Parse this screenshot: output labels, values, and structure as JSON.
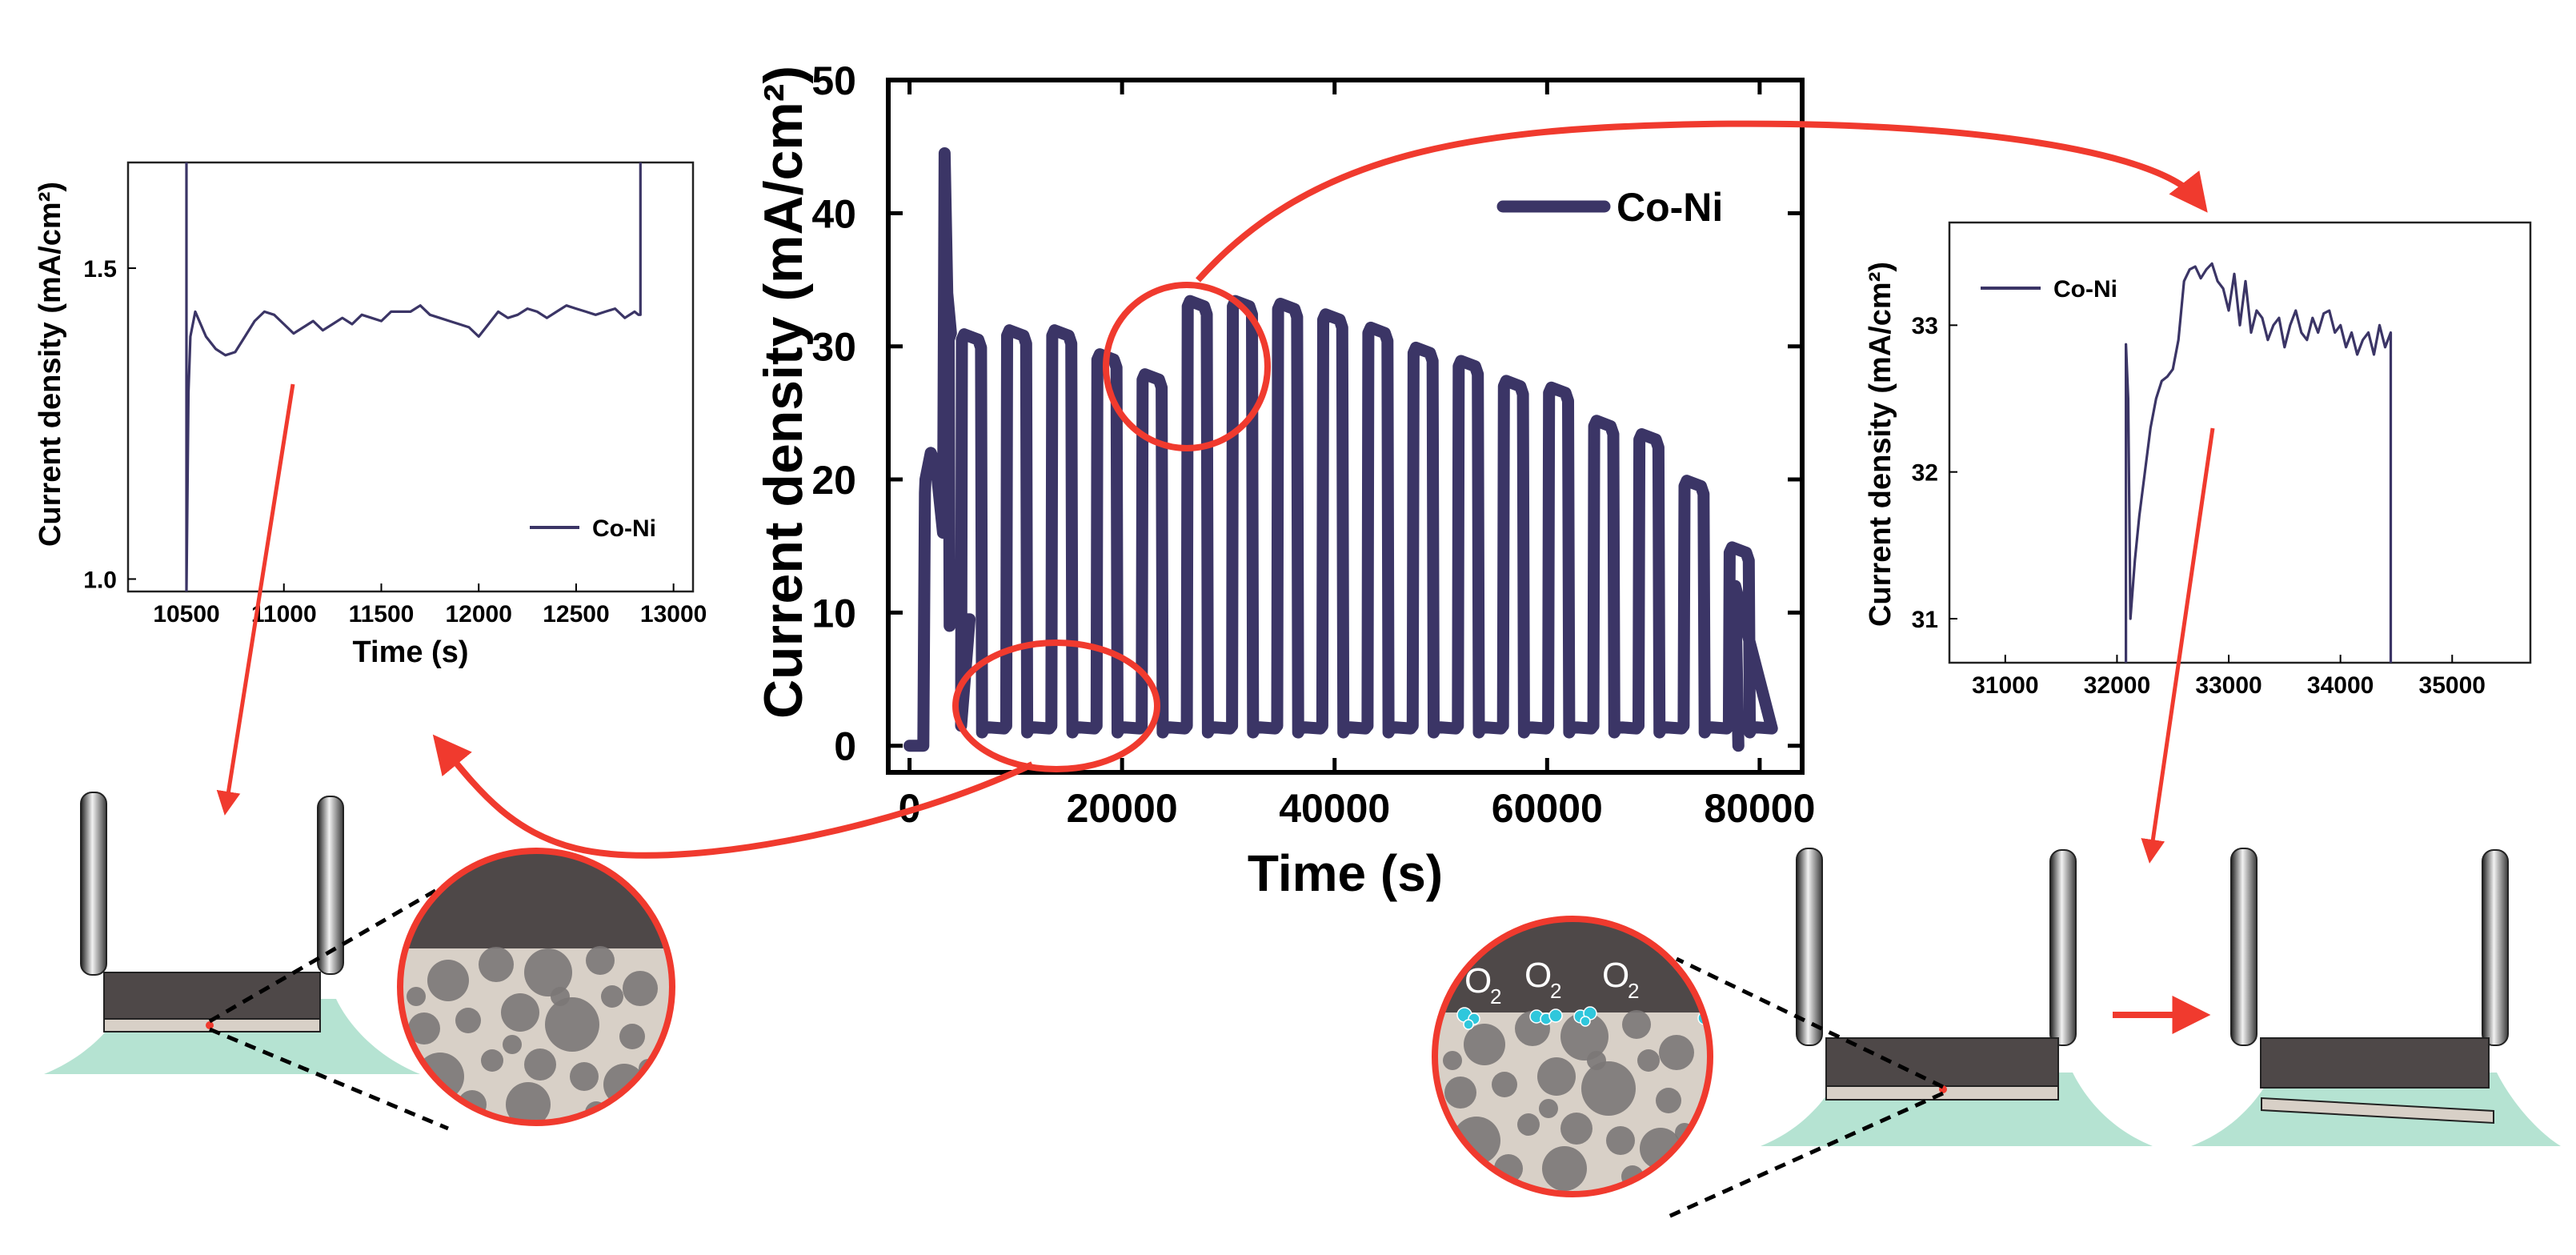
{
  "colors": {
    "series": "#3b3566",
    "arrow": "#f03a2e",
    "electrolyte": "#b5e3d2",
    "substrate": "#4e4848",
    "coating": "#d8d0c7",
    "pore": "#7b7777",
    "bubble": "#2fc7dc"
  },
  "chart_data": [
    {
      "id": "main",
      "type": "line",
      "title": "",
      "xlabel": "Time (s)",
      "ylabel": "Current density  (mA/cm²)",
      "xlim": [
        -2000,
        84000
      ],
      "ylim": [
        -2,
        50
      ],
      "xticks": [
        0,
        20000,
        40000,
        60000,
        80000
      ],
      "xtick_labels": [
        "0",
        "20000",
        "40000",
        "60000",
        "80000"
      ],
      "yticks": [
        0,
        10,
        20,
        30,
        40,
        50
      ],
      "ytick_labels": [
        "0",
        "10",
        "20",
        "30",
        "40",
        "50"
      ],
      "legend": "top-right",
      "series": [
        {
          "name": "Co-Ni",
          "pulse_start_s": 1500,
          "pulse_period_s": 4250,
          "pulse_duty": 0.5,
          "low_level": 1,
          "off_value": 0,
          "end_s": 78000,
          "spike": {
            "t": 3300,
            "value": 44.5
          },
          "first_plateau": [
            20,
            22,
            21
          ],
          "high_levels": [
            30.5,
            30.8,
            30.8,
            29,
            27.5,
            33,
            33,
            32.8,
            32,
            31,
            29.5,
            28.5,
            27,
            26.5,
            24,
            23,
            19.5,
            14.5
          ]
        }
      ]
    },
    {
      "id": "inset-left",
      "type": "line",
      "title": "",
      "xlabel": "Time (s)",
      "ylabel": "Current density (mA/cm²)",
      "xlim": [
        10200,
        13100
      ],
      "ylim": [
        0.98,
        1.67
      ],
      "xticks": [
        10500,
        11000,
        11500,
        12000,
        12500,
        13000
      ],
      "xtick_labels": [
        "10500",
        "11000",
        "11500",
        "12000",
        "12500",
        "13000"
      ],
      "yticks": [
        1.0,
        1.5
      ],
      "ytick_labels": [
        "1.0",
        "1.5"
      ],
      "legend": "bottom-right",
      "series": [
        {
          "name": "Co-Ni",
          "x": [
            10500,
            10500,
            10510,
            10520,
            10545,
            10600,
            10650,
            10700,
            10750,
            10800,
            10850,
            10900,
            10950,
            11000,
            11050,
            11100,
            11150,
            11200,
            11250,
            11300,
            11350,
            11400,
            11450,
            11500,
            11550,
            11600,
            11650,
            11700,
            11750,
            11800,
            11850,
            11900,
            11950,
            12000,
            12050,
            12100,
            12150,
            12200,
            12250,
            12300,
            12350,
            12400,
            12450,
            12500,
            12550,
            12600,
            12650,
            12700,
            12750,
            12800,
            12820,
            12830,
            12830
          ],
          "y": [
            1.67,
            0.98,
            1.3,
            1.39,
            1.43,
            1.39,
            1.37,
            1.36,
            1.365,
            1.39,
            1.415,
            1.43,
            1.425,
            1.41,
            1.395,
            1.405,
            1.415,
            1.4,
            1.41,
            1.42,
            1.41,
            1.425,
            1.42,
            1.415,
            1.43,
            1.43,
            1.43,
            1.44,
            1.425,
            1.42,
            1.415,
            1.41,
            1.405,
            1.39,
            1.41,
            1.43,
            1.42,
            1.425,
            1.435,
            1.43,
            1.42,
            1.43,
            1.44,
            1.435,
            1.43,
            1.425,
            1.43,
            1.435,
            1.42,
            1.43,
            1.425,
            1.425,
            1.67
          ]
        }
      ]
    },
    {
      "id": "inset-right",
      "type": "line",
      "title": "",
      "xlabel": "",
      "ylabel": "Current density (mA/cm²)",
      "xlim": [
        30500,
        35700
      ],
      "ylim": [
        30.7,
        33.7
      ],
      "xticks": [
        31000,
        32000,
        33000,
        34000,
        35000
      ],
      "xtick_labels": [
        "31000",
        "32000",
        "33000",
        "34000",
        "35000"
      ],
      "yticks": [
        31,
        32,
        33
      ],
      "ytick_labels": [
        "31",
        "32",
        "33"
      ],
      "legend": "top-left",
      "series": [
        {
          "name": "Co-Ni",
          "x": [
            32080,
            32080,
            32100,
            32120,
            32140,
            32160,
            32200,
            32250,
            32300,
            32350,
            32400,
            32450,
            32500,
            32550,
            32600,
            32650,
            32700,
            32750,
            32800,
            32850,
            32900,
            32950,
            33000,
            33050,
            33100,
            33150,
            33200,
            33250,
            33300,
            33350,
            33400,
            33450,
            33500,
            33550,
            33600,
            33650,
            33700,
            33750,
            33800,
            33850,
            33900,
            33950,
            34000,
            34050,
            34100,
            34150,
            34200,
            34250,
            34300,
            34350,
            34400,
            34450,
            34450
          ],
          "y": [
            30.7,
            32.87,
            32.5,
            31.0,
            31.2,
            31.4,
            31.7,
            32.0,
            32.3,
            32.5,
            32.62,
            32.65,
            32.7,
            32.9,
            33.3,
            33.38,
            33.4,
            33.32,
            33.38,
            33.42,
            33.3,
            33.25,
            33.1,
            33.35,
            33.0,
            33.3,
            32.95,
            33.1,
            33.05,
            32.9,
            33.0,
            33.05,
            32.85,
            33.0,
            33.1,
            32.95,
            32.9,
            33.05,
            32.95,
            33.08,
            33.1,
            32.95,
            33.0,
            32.85,
            32.95,
            32.8,
            32.9,
            32.95,
            32.8,
            33.0,
            32.85,
            32.95,
            30.7
          ]
        }
      ]
    }
  ]
}
